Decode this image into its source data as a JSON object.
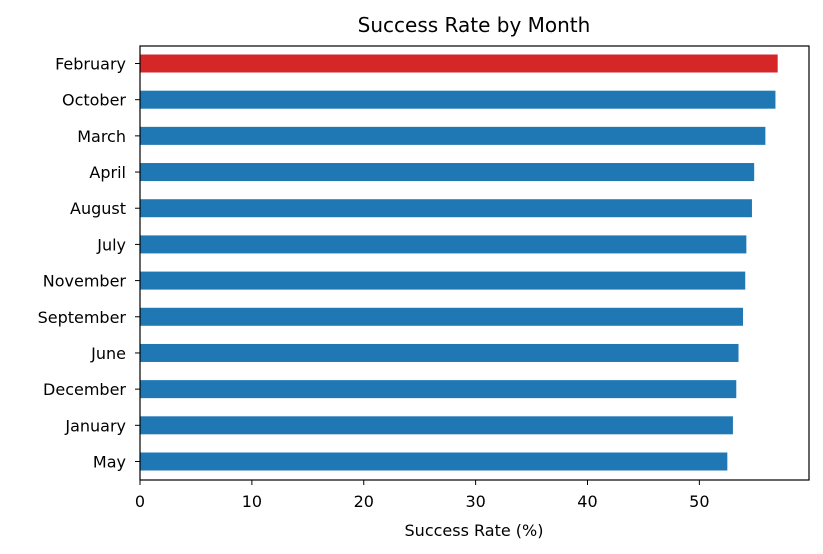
{
  "chart_data": {
    "type": "bar",
    "orientation": "horizontal",
    "title": "Success Rate by Month",
    "xlabel": "Success Rate (%)",
    "ylabel": "",
    "xlim": [
      0,
      59.8
    ],
    "xticks": [
      0,
      10,
      20,
      30,
      40,
      50
    ],
    "grid": false,
    "categories": [
      "February",
      "October",
      "March",
      "April",
      "August",
      "July",
      "November",
      "September",
      "June",
      "December",
      "January",
      "May"
    ],
    "values": [
      57.0,
      56.8,
      55.9,
      54.9,
      54.7,
      54.2,
      54.1,
      53.9,
      53.5,
      53.3,
      53.0,
      52.5
    ],
    "colors": {
      "default": "#1f77b4",
      "highlight": "#d62728"
    },
    "highlight_index": 0
  }
}
